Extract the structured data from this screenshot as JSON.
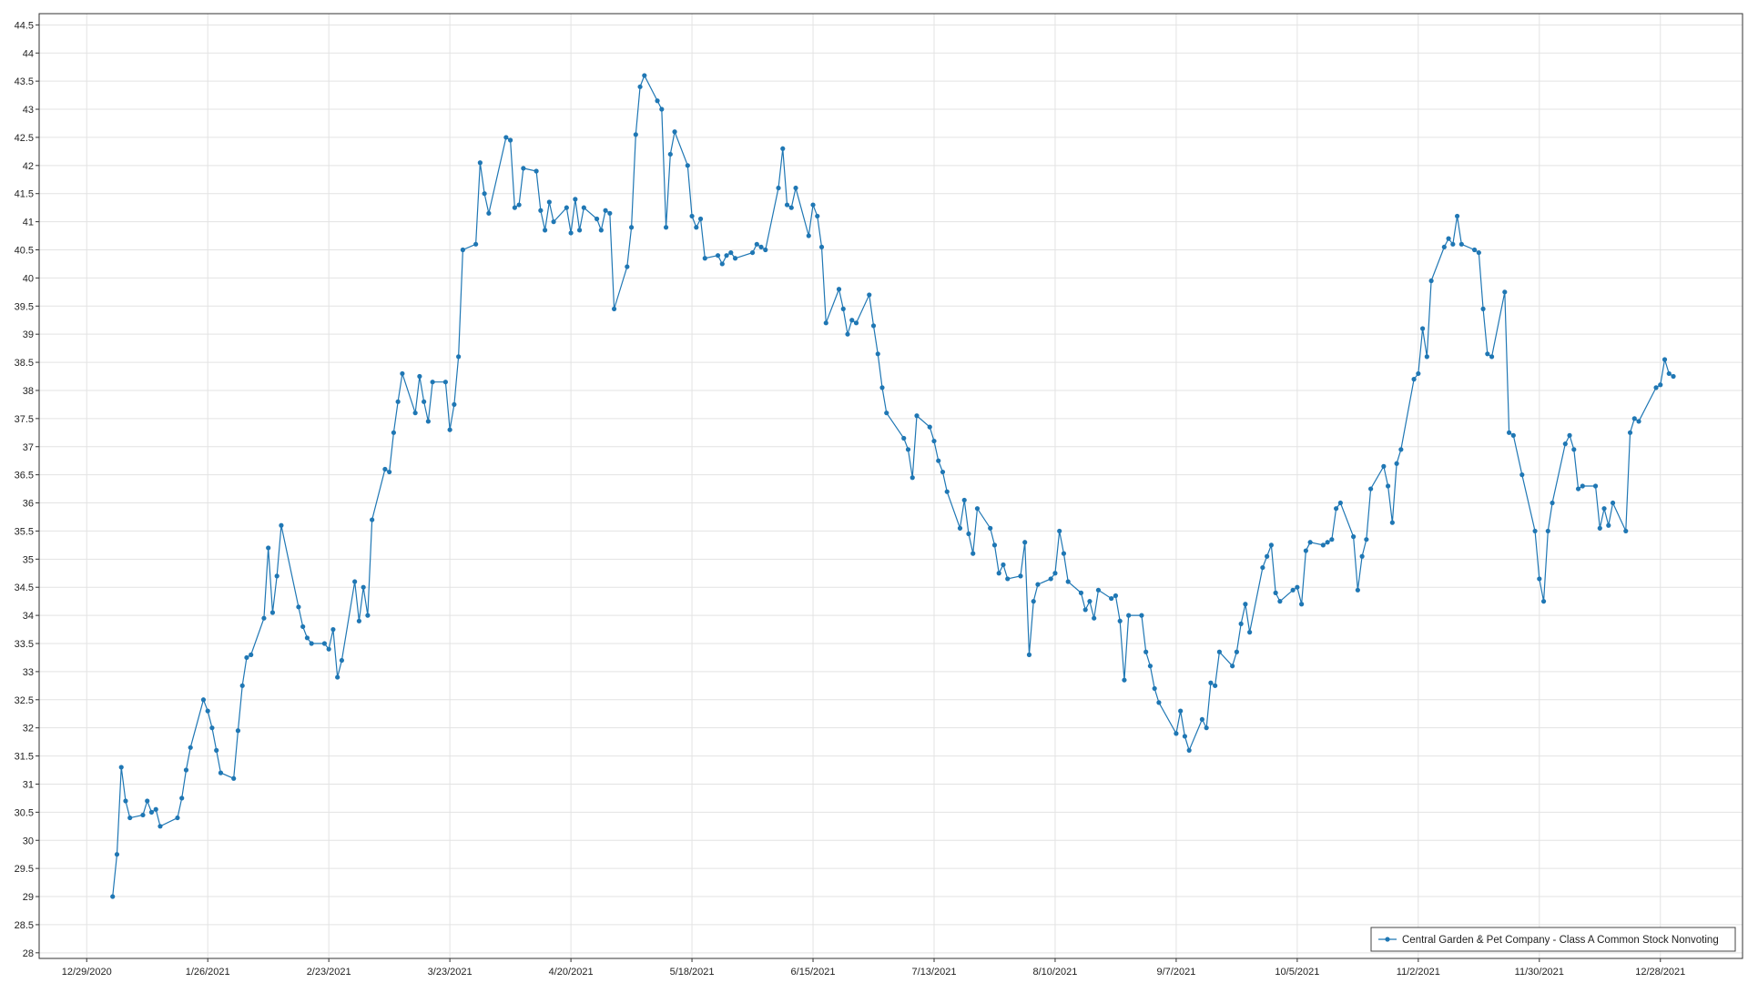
{
  "chart_data": {
    "type": "line",
    "series": [
      {
        "name": "Central Garden & Pet Company - Class A Common Stock Nonvoting",
        "color": "#1f77b4",
        "values": [
          29.0,
          29.75,
          31.3,
          30.7,
          30.4,
          30.45,
          30.7,
          30.5,
          30.55,
          30.25,
          30.4,
          30.75,
          31.25,
          31.65,
          32.5,
          32.3,
          32.0,
          31.6,
          31.2,
          31.1,
          31.95,
          32.75,
          33.25,
          33.3,
          33.95,
          35.2,
          34.05,
          34.7,
          35.6,
          34.15,
          33.8,
          33.6,
          33.5,
          33.5,
          33.4,
          33.75,
          32.9,
          33.2,
          34.6,
          33.9,
          34.5,
          34.0,
          35.7,
          36.6,
          36.55,
          37.25,
          37.8,
          38.3,
          37.6,
          38.25,
          37.8,
          37.45,
          38.15,
          38.15,
          37.3,
          37.75,
          38.6,
          40.5,
          40.6,
          42.05,
          41.5,
          41.15,
          42.5,
          42.45,
          41.25,
          41.3,
          41.95,
          41.9,
          41.2,
          40.85,
          41.35,
          41.0,
          41.25,
          40.8,
          41.4,
          40.85,
          41.25,
          41.05,
          40.85,
          41.2,
          41.15,
          39.45,
          40.2,
          40.9,
          42.55,
          43.4,
          43.6,
          43.15,
          43.0,
          40.9,
          42.2,
          42.6,
          42.0,
          41.1,
          40.9,
          41.05,
          40.35,
          40.4,
          40.25,
          40.4,
          40.45,
          40.35,
          40.45,
          40.6,
          40.55,
          40.5,
          41.6,
          42.3,
          41.3,
          41.25,
          41.6,
          40.75,
          41.3,
          41.1,
          40.55,
          39.2,
          39.8,
          39.45,
          39.0,
          39.25,
          39.2,
          39.7,
          39.15,
          38.65,
          38.05,
          37.6,
          37.15,
          36.95,
          36.45,
          37.55,
          37.35,
          37.1,
          36.75,
          36.55,
          36.2,
          35.55,
          36.05,
          35.45,
          35.1,
          35.9,
          35.55,
          35.25,
          34.75,
          34.9,
          34.65,
          34.7,
          35.3,
          33.3,
          34.25,
          34.55,
          34.65,
          34.75,
          35.5,
          35.1,
          34.6,
          34.4,
          34.1,
          34.25,
          33.95,
          34.45,
          34.3,
          34.35,
          33.9,
          32.85,
          34.0,
          34.0,
          33.35,
          33.1,
          32.7,
          32.45,
          31.9,
          32.3,
          31.85,
          31.6,
          32.15,
          32.0,
          32.8,
          32.75,
          33.35,
          33.1,
          33.35,
          33.85,
          34.2,
          33.7,
          34.85,
          35.05,
          35.25,
          34.4,
          34.25,
          34.45,
          34.5,
          34.2,
          35.15,
          35.3,
          35.25,
          35.3,
          35.35,
          35.9,
          36.0,
          35.4,
          34.45,
          35.05,
          35.35,
          36.25,
          36.65,
          36.3,
          35.65,
          36.7,
          36.95,
          38.2,
          38.3,
          39.1,
          38.6,
          39.95,
          40.55,
          40.7,
          40.6,
          41.1,
          40.6,
          40.5,
          40.45,
          39.45,
          38.65,
          38.6,
          39.75,
          37.25,
          37.2,
          36.5,
          35.5,
          34.65,
          34.25,
          35.5,
          36.0,
          37.05,
          37.2,
          36.95,
          36.25,
          36.3,
          36.3,
          35.55,
          35.9,
          35.6,
          36.0,
          35.5,
          37.25,
          37.5,
          37.45,
          38.05,
          38.1,
          38.55,
          38.3,
          38.25
        ]
      }
    ],
    "x": [
      "2021-01-04",
      "2021-01-05",
      "2021-01-06",
      "2021-01-07",
      "2021-01-08",
      "2021-01-11",
      "2021-01-12",
      "2021-01-13",
      "2021-01-14",
      "2021-01-15",
      "2021-01-19",
      "2021-01-20",
      "2021-01-21",
      "2021-01-22",
      "2021-01-25",
      "2021-01-26",
      "2021-01-27",
      "2021-01-28",
      "2021-01-29",
      "2021-02-01",
      "2021-02-02",
      "2021-02-03",
      "2021-02-04",
      "2021-02-05",
      "2021-02-08",
      "2021-02-09",
      "2021-02-10",
      "2021-02-11",
      "2021-02-12",
      "2021-02-16",
      "2021-02-17",
      "2021-02-18",
      "2021-02-19",
      "2021-02-22",
      "2021-02-23",
      "2021-02-24",
      "2021-02-25",
      "2021-02-26",
      "2021-03-01",
      "2021-03-02",
      "2021-03-03",
      "2021-03-04",
      "2021-03-05",
      "2021-03-08",
      "2021-03-09",
      "2021-03-10",
      "2021-03-11",
      "2021-03-12",
      "2021-03-15",
      "2021-03-16",
      "2021-03-17",
      "2021-03-18",
      "2021-03-19",
      "2021-03-22",
      "2021-03-23",
      "2021-03-24",
      "2021-03-25",
      "2021-03-26",
      "2021-03-29",
      "2021-03-30",
      "2021-03-31",
      "2021-04-01",
      "2021-04-05",
      "2021-04-06",
      "2021-04-07",
      "2021-04-08",
      "2021-04-09",
      "2021-04-12",
      "2021-04-13",
      "2021-04-14",
      "2021-04-15",
      "2021-04-16",
      "2021-04-19",
      "2021-04-20",
      "2021-04-21",
      "2021-04-22",
      "2021-04-23",
      "2021-04-26",
      "2021-04-27",
      "2021-04-28",
      "2021-04-29",
      "2021-04-30",
      "2021-05-03",
      "2021-05-04",
      "2021-05-05",
      "2021-05-06",
      "2021-05-07",
      "2021-05-10",
      "2021-05-11",
      "2021-05-12",
      "2021-05-13",
      "2021-05-14",
      "2021-05-17",
      "2021-05-18",
      "2021-05-19",
      "2021-05-20",
      "2021-05-21",
      "2021-05-24",
      "2021-05-25",
      "2021-05-26",
      "2021-05-27",
      "2021-05-28",
      "2021-06-01",
      "2021-06-02",
      "2021-06-03",
      "2021-06-04",
      "2021-06-07",
      "2021-06-08",
      "2021-06-09",
      "2021-06-10",
      "2021-06-11",
      "2021-06-14",
      "2021-06-15",
      "2021-06-16",
      "2021-06-17",
      "2021-06-18",
      "2021-06-21",
      "2021-06-22",
      "2021-06-23",
      "2021-06-24",
      "2021-06-25",
      "2021-06-28",
      "2021-06-29",
      "2021-06-30",
      "2021-07-01",
      "2021-07-02",
      "2021-07-06",
      "2021-07-07",
      "2021-07-08",
      "2021-07-09",
      "2021-07-12",
      "2021-07-13",
      "2021-07-14",
      "2021-07-15",
      "2021-07-16",
      "2021-07-19",
      "2021-07-20",
      "2021-07-21",
      "2021-07-22",
      "2021-07-23",
      "2021-07-26",
      "2021-07-27",
      "2021-07-28",
      "2021-07-29",
      "2021-07-30",
      "2021-08-02",
      "2021-08-03",
      "2021-08-04",
      "2021-08-05",
      "2021-08-06",
      "2021-08-09",
      "2021-08-10",
      "2021-08-11",
      "2021-08-12",
      "2021-08-13",
      "2021-08-16",
      "2021-08-17",
      "2021-08-18",
      "2021-08-19",
      "2021-08-20",
      "2021-08-23",
      "2021-08-24",
      "2021-08-25",
      "2021-08-26",
      "2021-08-27",
      "2021-08-30",
      "2021-08-31",
      "2021-09-01",
      "2021-09-02",
      "2021-09-03",
      "2021-09-07",
      "2021-09-08",
      "2021-09-09",
      "2021-09-10",
      "2021-09-13",
      "2021-09-14",
      "2021-09-15",
      "2021-09-16",
      "2021-09-17",
      "2021-09-20",
      "2021-09-21",
      "2021-09-22",
      "2021-09-23",
      "2021-09-24",
      "2021-09-27",
      "2021-09-28",
      "2021-09-29",
      "2021-09-30",
      "2021-10-01",
      "2021-10-04",
      "2021-10-05",
      "2021-10-06",
      "2021-10-07",
      "2021-10-08",
      "2021-10-11",
      "2021-10-12",
      "2021-10-13",
      "2021-10-14",
      "2021-10-15",
      "2021-10-18",
      "2021-10-19",
      "2021-10-20",
      "2021-10-21",
      "2021-10-22",
      "2021-10-25",
      "2021-10-26",
      "2021-10-27",
      "2021-10-28",
      "2021-10-29",
      "2021-11-01",
      "2021-11-02",
      "2021-11-03",
      "2021-11-04",
      "2021-11-05",
      "2021-11-08",
      "2021-11-09",
      "2021-11-10",
      "2021-11-11",
      "2021-11-12",
      "2021-11-15",
      "2021-11-16",
      "2021-11-17",
      "2021-11-18",
      "2021-11-19",
      "2021-11-22",
      "2021-11-23",
      "2021-11-24",
      "2021-11-26",
      "2021-11-29",
      "2021-11-30",
      "2021-12-01",
      "2021-12-02",
      "2021-12-03",
      "2021-12-06",
      "2021-12-07",
      "2021-12-08",
      "2021-12-09",
      "2021-12-10",
      "2021-12-13",
      "2021-12-14",
      "2021-12-15",
      "2021-12-16",
      "2021-12-17",
      "2021-12-20",
      "2021-12-21",
      "2021-12-22",
      "2021-12-23",
      "2021-12-27",
      "2021-12-28",
      "2021-12-29",
      "2021-12-30",
      "2021-12-31"
    ],
    "xlim": [
      "2020-12-18",
      "2022-01-16"
    ],
    "xticks": [
      {
        "value": "2020-12-29",
        "label": "12/29/2020"
      },
      {
        "value": "2021-01-26",
        "label": "1/26/2021"
      },
      {
        "value": "2021-02-23",
        "label": "2/23/2021"
      },
      {
        "value": "2021-03-23",
        "label": "3/23/2021"
      },
      {
        "value": "2021-04-20",
        "label": "4/20/2021"
      },
      {
        "value": "2021-05-18",
        "label": "5/18/2021"
      },
      {
        "value": "2021-06-15",
        "label": "6/15/2021"
      },
      {
        "value": "2021-07-13",
        "label": "7/13/2021"
      },
      {
        "value": "2021-08-10",
        "label": "8/10/2021"
      },
      {
        "value": "2021-09-07",
        "label": "9/7/2021"
      },
      {
        "value": "2021-10-05",
        "label": "10/5/2021"
      },
      {
        "value": "2021-11-02",
        "label": "11/2/2021"
      },
      {
        "value": "2021-11-30",
        "label": "11/30/2021"
      },
      {
        "value": "2021-12-28",
        "label": "12/28/2021"
      }
    ],
    "ylim": [
      27.9,
      44.7
    ],
    "yticks": [
      28,
      28.5,
      29,
      29.5,
      30,
      30.5,
      31,
      31.5,
      32,
      32.5,
      33,
      33.5,
      34,
      34.5,
      35,
      35.5,
      36,
      36.5,
      37,
      37.5,
      38,
      38.5,
      39,
      39.5,
      40,
      40.5,
      41,
      41.5,
      42,
      42.5,
      43,
      43.5,
      44,
      44.5
    ],
    "grid": true,
    "markers": true,
    "legend": "lower right"
  }
}
